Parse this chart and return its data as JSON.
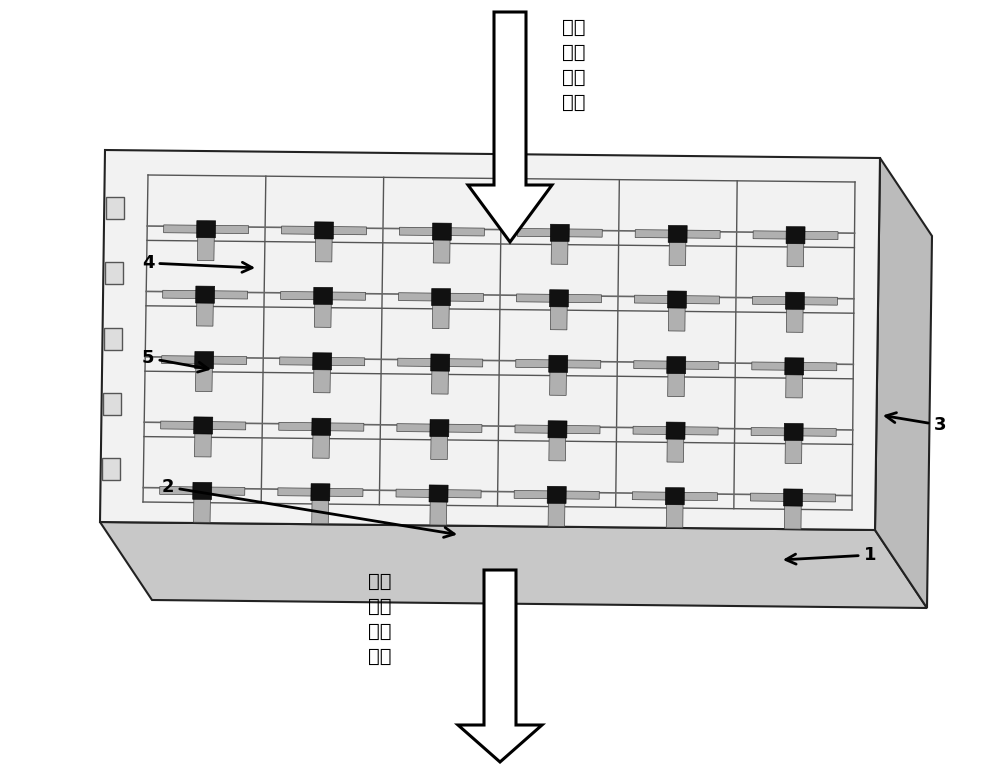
{
  "bg_color": "#ffffff",
  "figure_size": [
    10.0,
    7.75
  ],
  "dpi": 100,
  "top_label": "空间\n传播\n太赫\n兹波",
  "bottom_label": "被调\n制的\n太赫\n兹波",
  "ncols": 6,
  "nrows": 5,
  "board_outer_color": "#e8e8e8",
  "board_top_color": "#f5f5f5",
  "board_edge_color": "#222222",
  "grid_line_color": "#555555",
  "cell_bg_color": "#f0f0f0",
  "metal_color": "#b0b0b0",
  "hemt_color": "#111111",
  "bus_line_color": "#888888",
  "annotation_color": "#000000"
}
